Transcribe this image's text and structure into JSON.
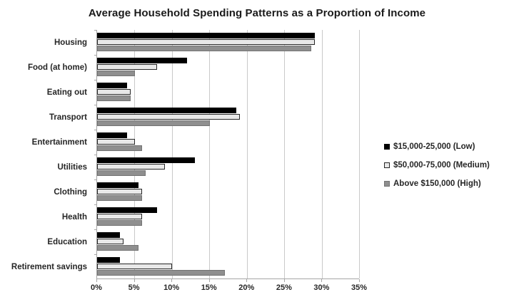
{
  "chart_data": {
    "type": "bar",
    "orientation": "horizontal",
    "title": "Average Household Spending Patterns as a Proportion of Income",
    "xlabel": "",
    "ylabel": "",
    "xlim": [
      0,
      35
    ],
    "x_tick_step": 5,
    "x_tick_labels": [
      "0%",
      "5%",
      "10%",
      "15%",
      "20%",
      "25%",
      "30%",
      "35%"
    ],
    "grid": "vertical",
    "legend_position": "right",
    "categories": [
      "Housing",
      "Food (at home)",
      "Eating out",
      "Transport",
      "Entertainment",
      "Utilities",
      "Clothing",
      "Health",
      "Education",
      "Retirement savings"
    ],
    "series": [
      {
        "name": "$15,000-25,000 (Low)",
        "fill": "#000000",
        "border": "#000000",
        "pattern": "solid",
        "values": [
          29,
          12,
          4,
          18.5,
          4,
          13,
          5.5,
          8,
          3,
          3
        ]
      },
      {
        "name": "$50,000-75,000 (Medium)",
        "fill": "#e8e8e8",
        "border": "#262626",
        "pattern": "solid",
        "values": [
          29,
          8,
          4.5,
          19,
          5,
          9,
          6,
          6,
          3.5,
          10
        ]
      },
      {
        "name": "Above $150,000 (High)",
        "fill": "#8f8f8f",
        "border": "#737373",
        "pattern": "hatch",
        "values": [
          28.5,
          5,
          4.5,
          15,
          6,
          6.5,
          6,
          6,
          5.5,
          17
        ]
      }
    ]
  }
}
